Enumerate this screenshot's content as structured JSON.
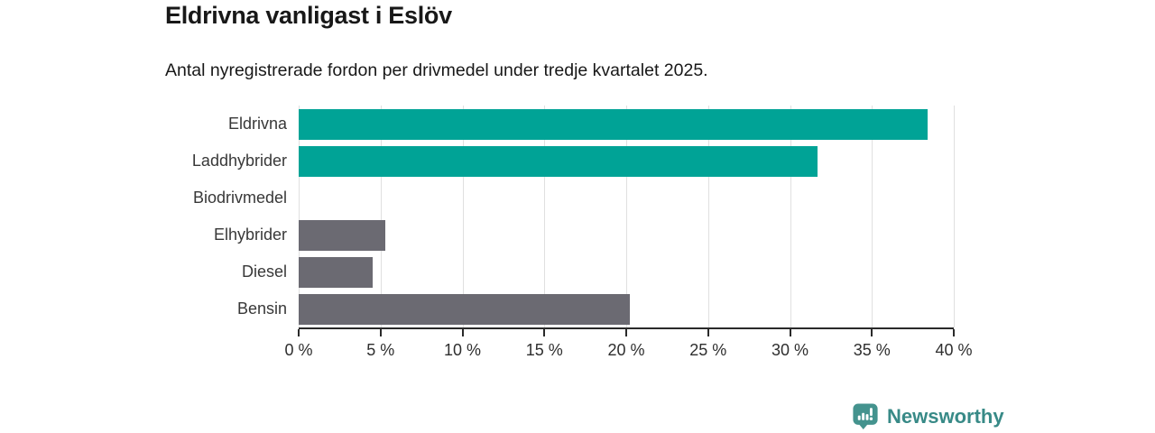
{
  "header": {
    "title": "Eldrivna vanligast i Eslöv",
    "subtitle": "Antal nyregistrerade fordon per drivmedel under tredje kvartalet 2025."
  },
  "chart_data": {
    "type": "bar",
    "orientation": "horizontal",
    "title": "Eldrivna vanligast i Eslöv",
    "subtitle": "Antal nyregistrerade fordon per drivmedel under tredje kvartalet 2025.",
    "categories": [
      "Eldrivna",
      "Laddhybrider",
      "Biodrivmedel",
      "Elhybrider",
      "Diesel",
      "Bensin"
    ],
    "values": [
      38.4,
      31.7,
      0,
      5.3,
      4.5,
      20.2
    ],
    "unit": "%",
    "bar_colors": [
      "#00A396",
      "#00A396",
      "#00A396",
      "#6B6A72",
      "#6B6A72",
      "#6B6A72"
    ],
    "xlim": [
      0,
      40
    ],
    "x_ticks": [
      0,
      5,
      10,
      15,
      20,
      25,
      30,
      35,
      40
    ],
    "x_tick_labels": [
      "0 %",
      "5 %",
      "10 %",
      "15 %",
      "20 %",
      "25 %",
      "30 %",
      "35 %",
      "40 %"
    ],
    "grid": true,
    "legend": "none"
  },
  "footer": {
    "brand_name": "Newsworthy",
    "logo_icon": "bar-chart-speech-bubble-icon"
  },
  "colors": {
    "teal": "#00A396",
    "gray": "#6B6A72",
    "brand_teal": "#44938E",
    "brand_text": "#388A87",
    "gridline": "#E0E0E0",
    "axis": "#2A2A2A",
    "title_text": "#181818",
    "label_text": "#383838"
  }
}
